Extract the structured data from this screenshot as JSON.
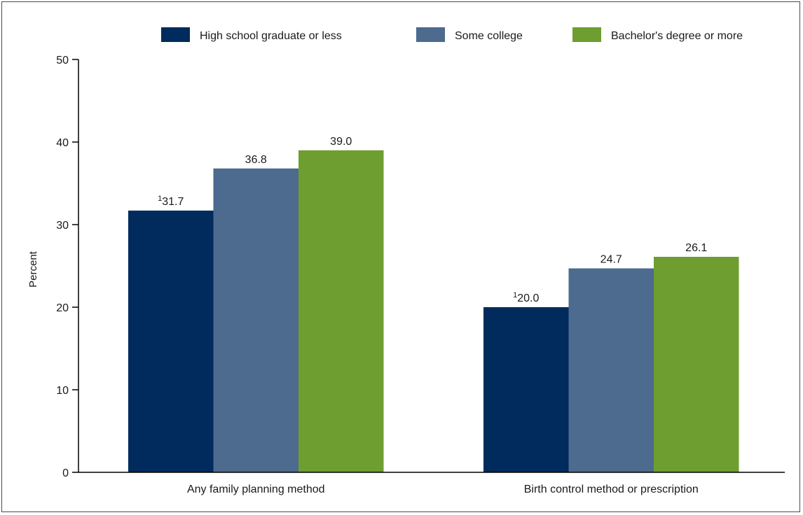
{
  "chart_data": {
    "type": "bar",
    "categories": [
      "Any family planning method",
      "Birth control method or prescription"
    ],
    "series": [
      {
        "name": "High school graduate or less",
        "values": [
          31.7,
          20.0
        ],
        "labels": [
          "31.7",
          "20.0"
        ],
        "footnotes": [
          "1",
          "1"
        ],
        "color": "#002b5c"
      },
      {
        "name": "Some college",
        "values": [
          36.8,
          24.7
        ],
        "labels": [
          "36.8",
          "24.7"
        ],
        "footnotes": [
          "",
          ""
        ],
        "color": "#4d6a8f"
      },
      {
        "name": "Bachelor's degree or more",
        "values": [
          39.0,
          26.1
        ],
        "labels": [
          "39.0",
          "26.1"
        ],
        "footnotes": [
          "",
          ""
        ],
        "color": "#6e9e30"
      }
    ],
    "ylabel": "Percent",
    "xlabel": "",
    "ylim": [
      0,
      50
    ],
    "yticks": [
      "0",
      "10",
      "20",
      "30",
      "40",
      "50"
    ],
    "grid": false,
    "legend_position": "top-right"
  }
}
